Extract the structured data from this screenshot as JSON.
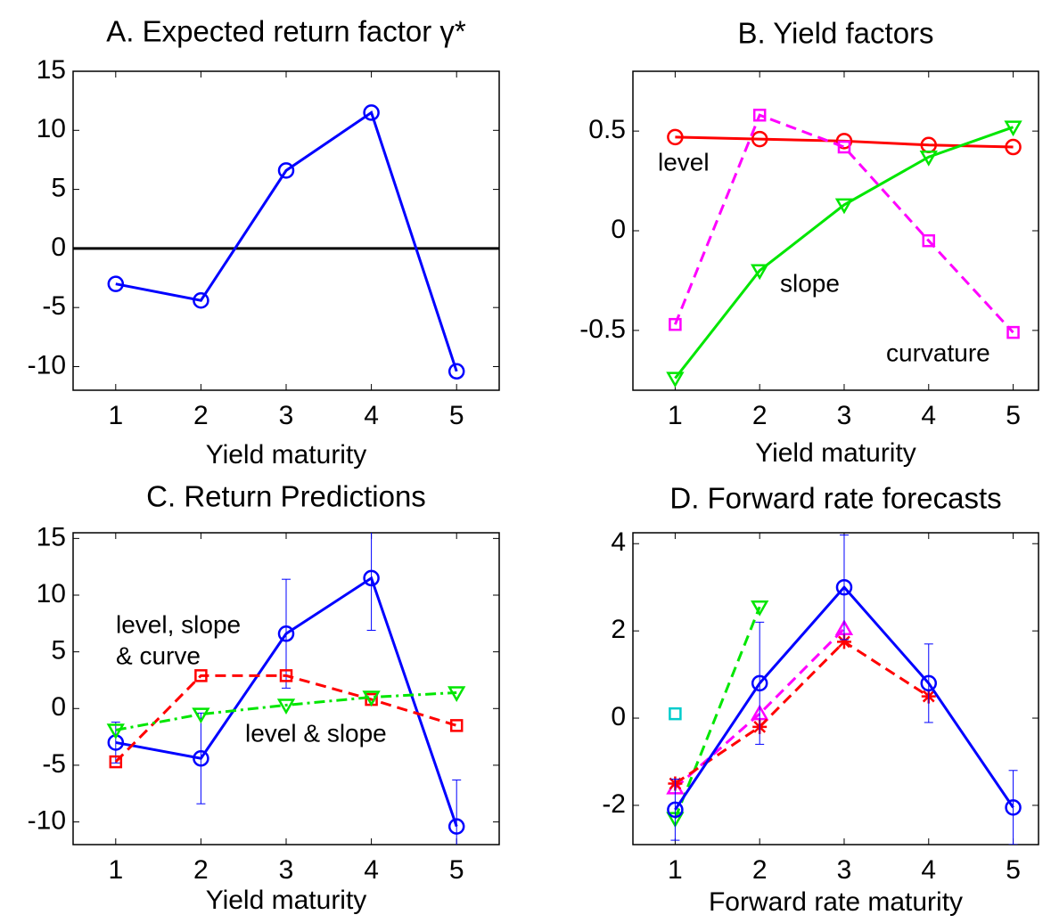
{
  "chart_data": [
    {
      "type": "line",
      "title": "A. Expected return factor γ*",
      "xlabel": "Yield maturity",
      "x": [
        1,
        2,
        3,
        4,
        5
      ],
      "xlim": [
        0.5,
        5.5
      ],
      "xticks": [
        1,
        2,
        3,
        4,
        5
      ],
      "ylim": [
        -12,
        15
      ],
      "yticks": [
        -10,
        -5,
        0,
        5,
        10,
        15
      ],
      "hlines": [
        0
      ],
      "series": [
        {
          "color": "#0000ff",
          "line": "solid",
          "marker": "circle",
          "values": [
            -3,
            -4.4,
            6.6,
            11.5,
            -10.4
          ]
        }
      ]
    },
    {
      "type": "line",
      "title": "B. Yield factors",
      "xlabel": "Yield maturity",
      "x": [
        1,
        2,
        3,
        4,
        5
      ],
      "xlim": [
        0.5,
        5.3
      ],
      "xticks": [
        1,
        2,
        3,
        4,
        5
      ],
      "ylim": [
        -0.8,
        0.8
      ],
      "yticks": [
        -0.5,
        0,
        0.5
      ],
      "annotations": [
        "level",
        "slope",
        "curvature"
      ],
      "series": [
        {
          "color": "#ff0000",
          "line": "solid",
          "marker": "circle",
          "values": [
            0.47,
            0.46,
            0.45,
            0.43,
            0.42
          ]
        },
        {
          "color": "#00e600",
          "line": "solid",
          "marker": "triangle-down",
          "values": [
            -0.74,
            -0.2,
            0.13,
            0.37,
            0.52
          ]
        },
        {
          "color": "#ff00ff",
          "line": "dashed",
          "marker": "square",
          "values": [
            -0.47,
            0.58,
            0.42,
            -0.05,
            -0.51
          ]
        }
      ]
    },
    {
      "type": "line",
      "title": "C. Return Predictions",
      "xlabel": "Yield maturity",
      "x": [
        1,
        2,
        3,
        4,
        5
      ],
      "xlim": [
        0.5,
        5.5
      ],
      "xticks": [
        1,
        2,
        3,
        4,
        5
      ],
      "ylim": [
        -12,
        15.5
      ],
      "yticks": [
        -10,
        -5,
        0,
        5,
        10,
        15
      ],
      "annotations": [
        "level, slope",
        "& curve",
        "level & slope"
      ],
      "series": [
        {
          "color": "#0000ff",
          "line": "solid",
          "marker": "circle",
          "values": [
            -3,
            -4.4,
            6.6,
            11.5,
            -10.4
          ],
          "errors": [
            1.8,
            4,
            4.8,
            4.6,
            4.1
          ]
        },
        {
          "color": "#ff0000",
          "line": "dashed",
          "marker": "square",
          "values": [
            -4.7,
            2.9,
            2.9,
            0.8,
            -1.5
          ]
        },
        {
          "color": "#00e600",
          "line": "dashdot",
          "marker": "triangle-down",
          "values": [
            -1.9,
            -0.5,
            0.3,
            1.0,
            1.4
          ]
        }
      ]
    },
    {
      "type": "line",
      "title": "D. Forward rate forecasts",
      "xlabel": "Forward rate maturity",
      "x": [
        1,
        2,
        3,
        4,
        5
      ],
      "xlim": [
        0.5,
        5.3
      ],
      "xticks": [
        1,
        2,
        3,
        4,
        5
      ],
      "ylim": [
        -2.9,
        4.25
      ],
      "yticks": [
        -2,
        0,
        2,
        4
      ],
      "series": [
        {
          "color": "#00e600",
          "line": "dashed",
          "marker": "triangle-down",
          "values": [
            -2.3,
            2.55,
            null,
            null,
            null
          ]
        },
        {
          "color": "#ff00ff",
          "line": "dashed",
          "marker": "triangle-up",
          "values": [
            -1.6,
            0.1,
            2.05,
            null,
            null
          ]
        },
        {
          "color": "#ff0000",
          "line": "dashed",
          "marker": "star",
          "values": [
            -1.5,
            -0.2,
            1.75,
            0.5,
            null
          ]
        },
        {
          "color": "#00cccc",
          "line": "none",
          "marker": "square",
          "values": [
            0.1,
            null,
            null,
            null,
            null
          ]
        },
        {
          "color": "#0000ff",
          "line": "solid",
          "marker": "circle",
          "values": [
            -2.1,
            0.8,
            3.0,
            0.8,
            -2.05
          ],
          "errors": [
            0.7,
            1.4,
            1.2,
            0.9,
            0.85
          ]
        }
      ]
    }
  ]
}
